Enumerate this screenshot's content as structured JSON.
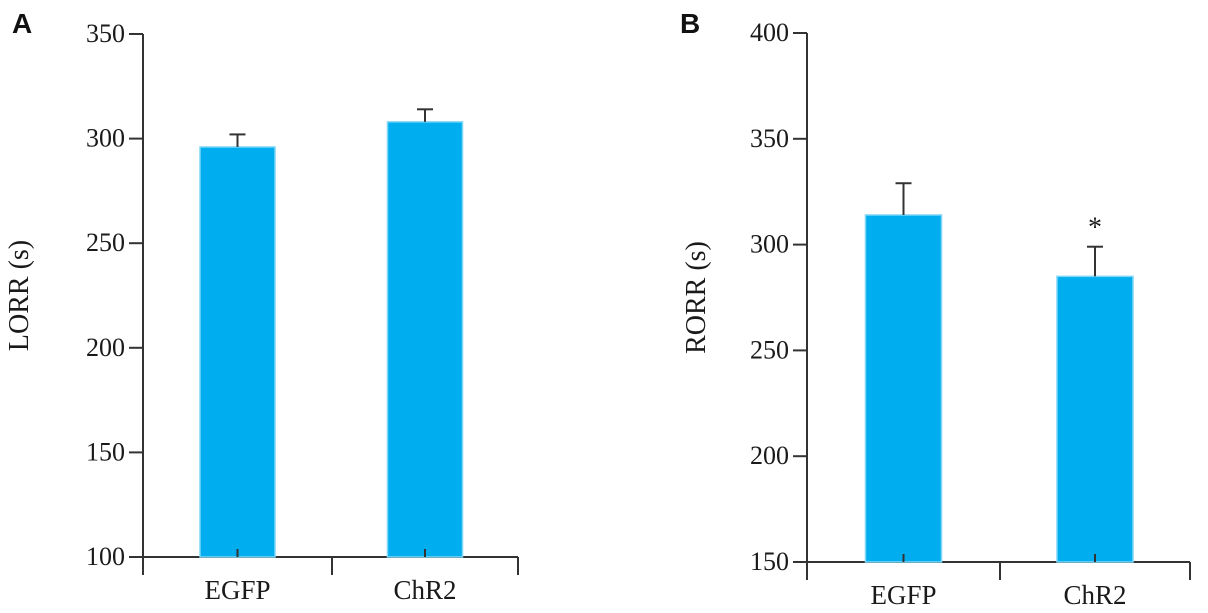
{
  "chart_data": [
    {
      "panel": "A",
      "type": "bar",
      "categories": [
        "EGFP",
        "ChR2"
      ],
      "values": [
        296,
        308
      ],
      "errors": [
        6,
        6
      ],
      "significance": [
        "",
        ""
      ],
      "ylabel": "LORR (s)",
      "xlabel": "",
      "ylim": [
        100,
        350
      ],
      "yticks": [
        "100",
        "150",
        "200",
        "250",
        "300",
        "350"
      ],
      "bar_color": "#00aeef",
      "grid": false
    },
    {
      "panel": "B",
      "type": "bar",
      "categories": [
        "EGFP",
        "ChR2"
      ],
      "values": [
        314,
        285
      ],
      "errors": [
        15,
        14
      ],
      "significance": [
        "",
        "*"
      ],
      "ylabel": "RORR (s)",
      "xlabel": "",
      "ylim": [
        150,
        400
      ],
      "yticks": [
        "150",
        "200",
        "250",
        "300",
        "350",
        "400"
      ],
      "bar_color": "#00aeef",
      "grid": false
    }
  ]
}
